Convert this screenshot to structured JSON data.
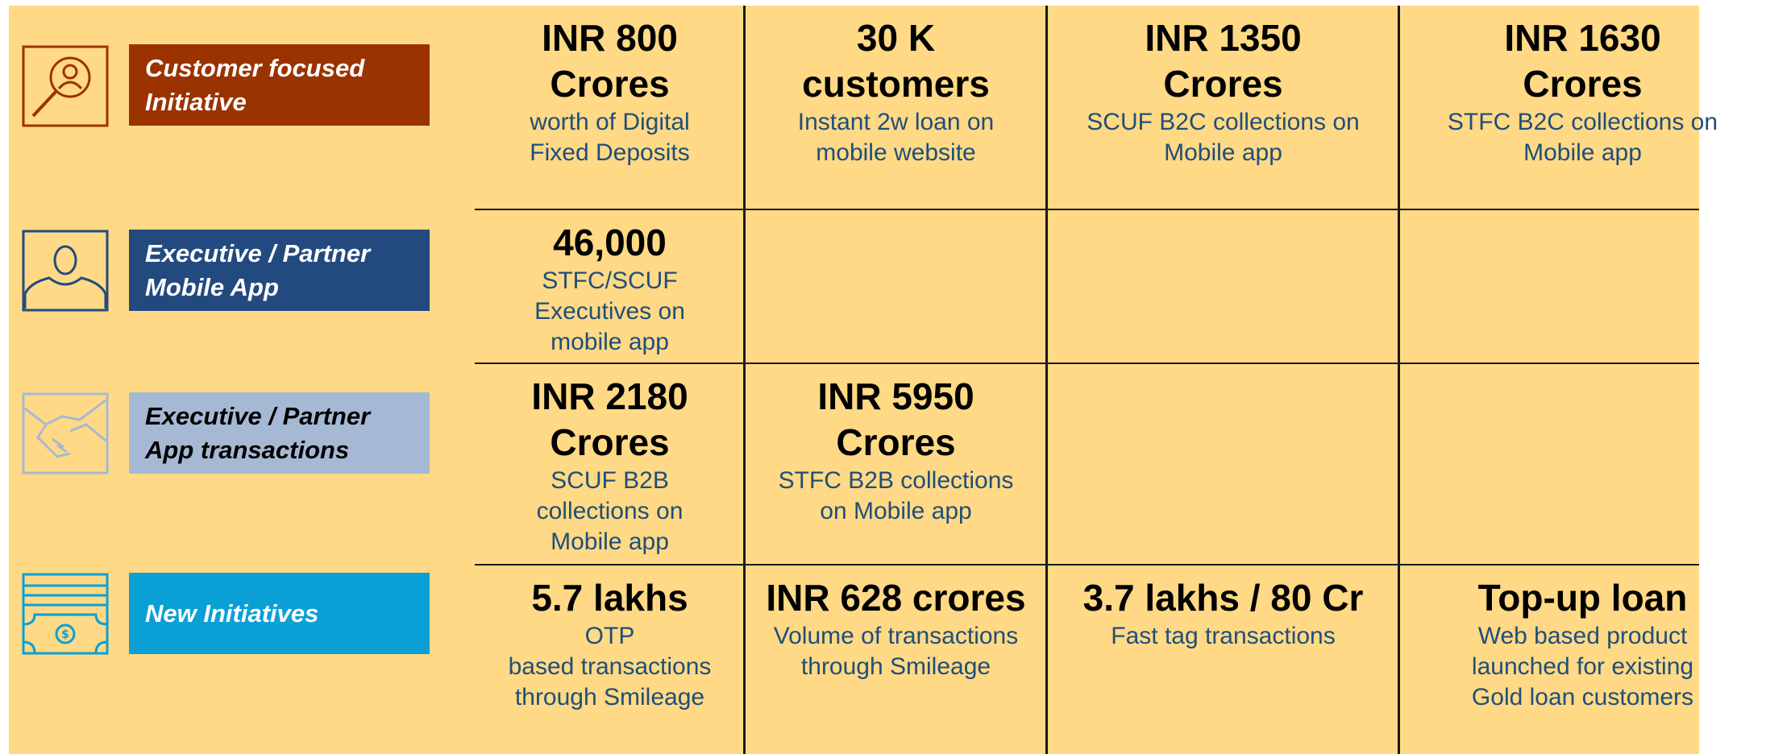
{
  "rows": [
    {
      "label": "Customer focused\nInitiative",
      "cells": [
        {
          "headline": "INR 800\nCrores",
          "description": "worth of Digital\nFixed Deposits"
        },
        {
          "headline": "30 K\ncustomers",
          "description": "Instant 2w loan on\nmobile website"
        },
        {
          "headline": "INR 1350\nCrores",
          "description": "SCUF B2C collections on\nMobile app"
        },
        {
          "headline": "INR 1630\nCrores",
          "description": "STFC B2C collections on\nMobile app"
        }
      ]
    },
    {
      "label": "Executive / Partner\nMobile App",
      "cells": [
        {
          "headline": "46,000",
          "description": "STFC/SCUF\nExecutives on\nmobile app"
        }
      ]
    },
    {
      "label": "Executive / Partner\nApp transactions",
      "cells": [
        {
          "headline": "INR 2180\nCrores",
          "description": "SCUF B2B\ncollections on\nMobile app"
        },
        {
          "headline": "INR 5950\nCrores",
          "description": "STFC B2B collections\non Mobile app"
        }
      ]
    },
    {
      "label": "New Initiatives",
      "cells": [
        {
          "headline": "5.7 lakhs",
          "description": "OTP\nbased  transactions\nthrough Smileage"
        },
        {
          "headline": "INR 628 crores",
          "description": "Volume of transactions\nthrough Smileage"
        },
        {
          "headline": "3.7 lakhs / 80 Cr",
          "description": "Fast tag transactions"
        },
        {
          "headline": "Top-up loan",
          "description": "Web based product\nlaunched for existing\nGold loan customers"
        }
      ]
    }
  ]
}
